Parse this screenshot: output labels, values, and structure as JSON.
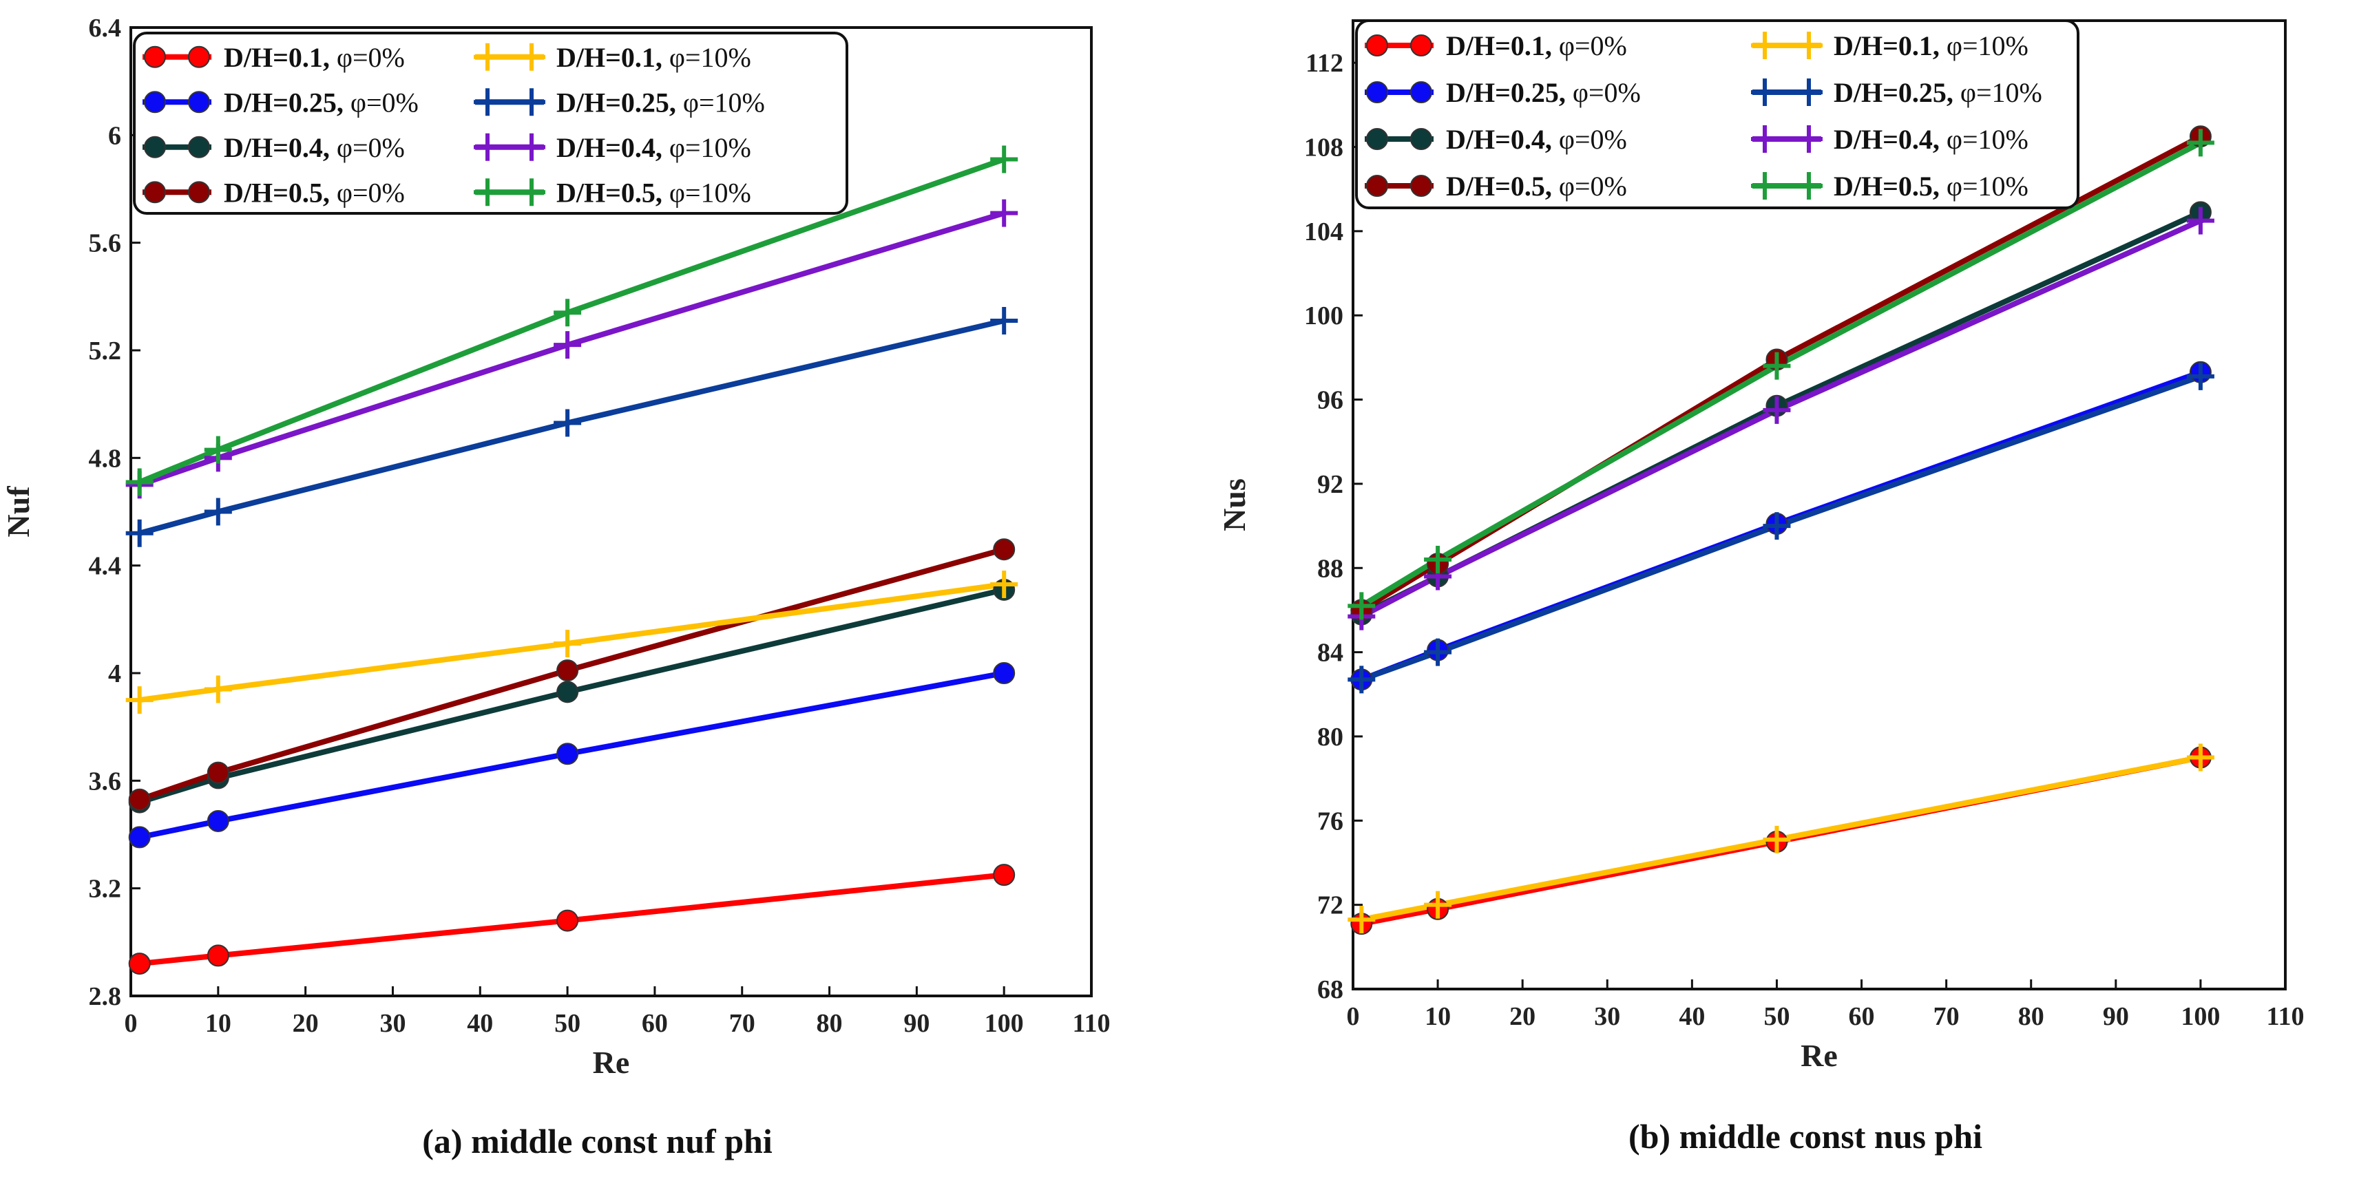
{
  "chart_data": [
    {
      "type": "line",
      "title": "",
      "caption": "(a) middle const nuf phi",
      "xlabel": "Re",
      "ylabel": "Nuf",
      "xlim": [
        0,
        110
      ],
      "ylim": [
        2.8,
        6.4
      ],
      "xticks": [
        0,
        10,
        20,
        30,
        40,
        50,
        60,
        70,
        80,
        90,
        100,
        110
      ],
      "yticks": [
        2.8,
        3.2,
        3.6,
        4,
        4.4,
        4.8,
        5.2,
        5.6,
        6,
        6.4
      ],
      "ytick_labels": [
        "2.8",
        "3.2",
        "3.6",
        "4",
        "4.4",
        "4.8",
        "5.2",
        "5.6",
        "6",
        "6.4"
      ],
      "xtick_labels": [
        "0",
        "10",
        "20",
        "30",
        "40",
        "50",
        "60",
        "70",
        "80",
        "90",
        "100",
        "110"
      ],
      "grid": false,
      "legend_position": "top-left",
      "x": [
        1,
        10,
        50,
        100
      ],
      "series": [
        {
          "name_bold": "D/H=0.1,",
          "name_rest": " φ=0%",
          "marker": "circle",
          "color": "#ff0000",
          "values": [
            2.92,
            2.95,
            3.08,
            3.25
          ]
        },
        {
          "name_bold": "D/H=0.25,",
          "name_rest": " φ=0%",
          "marker": "circle",
          "color": "#0a0af5",
          "values": [
            3.39,
            3.45,
            3.7,
            4.0
          ]
        },
        {
          "name_bold": "D/H=0.4,",
          "name_rest": " φ=0%",
          "marker": "circle",
          "color": "#0d3b3a",
          "values": [
            3.52,
            3.61,
            3.93,
            4.31
          ]
        },
        {
          "name_bold": "D/H=0.5,",
          "name_rest": " φ=0%",
          "marker": "circle",
          "color": "#8b0000",
          "values": [
            3.53,
            3.63,
            4.01,
            4.46
          ]
        },
        {
          "name_bold": "D/H=0.1,",
          "name_rest": " φ=10%",
          "marker": "plus",
          "color": "#ffc000",
          "values": [
            3.9,
            3.94,
            4.11,
            4.33
          ]
        },
        {
          "name_bold": "D/H=0.25,",
          "name_rest": " φ=10%",
          "marker": "plus",
          "color": "#0b3d9a",
          "values": [
            4.52,
            4.6,
            4.93,
            5.31
          ]
        },
        {
          "name_bold": "D/H=0.4,",
          "name_rest": " φ=10%",
          "marker": "plus",
          "color": "#7a16c8",
          "values": [
            4.7,
            4.8,
            5.22,
            5.71
          ]
        },
        {
          "name_bold": "D/H=0.5,",
          "name_rest": " φ=10%",
          "marker": "plus",
          "color": "#1e9e3a",
          "values": [
            4.71,
            4.83,
            5.34,
            5.91
          ]
        }
      ]
    },
    {
      "type": "line",
      "title": "",
      "caption": "(b) middle const nus phi",
      "xlabel": "Re",
      "ylabel": "Nus",
      "xlim": [
        0,
        110
      ],
      "ylim": [
        68,
        114
      ],
      "xticks": [
        0,
        10,
        20,
        30,
        40,
        50,
        60,
        70,
        80,
        90,
        100,
        110
      ],
      "yticks": [
        68,
        72,
        76,
        80,
        84,
        88,
        92,
        96,
        100,
        104,
        108,
        112
      ],
      "ytick_labels": [
        "68",
        "72",
        "76",
        "80",
        "84",
        "88",
        "92",
        "96",
        "100",
        "104",
        "108",
        "112"
      ],
      "xtick_labels": [
        "0",
        "10",
        "20",
        "30",
        "40",
        "50",
        "60",
        "70",
        "80",
        "90",
        "100",
        "110"
      ],
      "grid": false,
      "legend_position": "top-left",
      "x": [
        1,
        10,
        50,
        100
      ],
      "series": [
        {
          "name_bold": "D/H=0.1,",
          "name_rest": " φ=0%",
          "marker": "circle",
          "color": "#ff0000",
          "values": [
            71.1,
            71.8,
            75.0,
            79.0
          ]
        },
        {
          "name_bold": "D/H=0.25,",
          "name_rest": " φ=0%",
          "marker": "circle",
          "color": "#0a0af5",
          "values": [
            82.7,
            84.1,
            90.1,
            97.3
          ]
        },
        {
          "name_bold": "D/H=0.4,",
          "name_rest": " φ=0%",
          "marker": "circle",
          "color": "#0d3b3a",
          "values": [
            85.8,
            87.6,
            95.7,
            104.9
          ]
        },
        {
          "name_bold": "D/H=0.5,",
          "name_rest": " φ=0%",
          "marker": "circle",
          "color": "#8b0000",
          "values": [
            86.0,
            88.2,
            97.9,
            108.5
          ]
        },
        {
          "name_bold": "D/H=0.1,",
          "name_rest": " φ=10%",
          "marker": "plus",
          "color": "#ffc000",
          "values": [
            71.3,
            72.0,
            75.1,
            79.0
          ]
        },
        {
          "name_bold": "D/H=0.25,",
          "name_rest": " φ=10%",
          "marker": "plus",
          "color": "#0b3d9a",
          "values": [
            82.7,
            84.0,
            90.0,
            97.1
          ]
        },
        {
          "name_bold": "D/H=0.4,",
          "name_rest": " φ=10%",
          "marker": "plus",
          "color": "#7a16c8",
          "values": [
            85.7,
            87.6,
            95.5,
            104.5
          ]
        },
        {
          "name_bold": "D/H=0.5,",
          "name_rest": " φ=10%",
          "marker": "plus",
          "color": "#1e9e3a",
          "values": [
            86.2,
            88.4,
            97.6,
            108.2
          ]
        }
      ]
    }
  ]
}
